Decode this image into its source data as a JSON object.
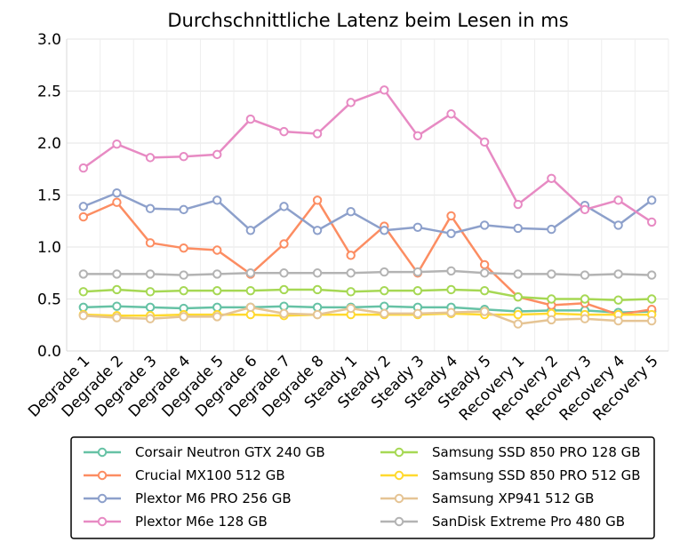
{
  "chart_data": {
    "type": "line",
    "title": "Durchschnittliche Latenz beim Lesen in ms",
    "xlabel": "",
    "ylabel": "",
    "ylim": [
      0.0,
      3.0
    ],
    "yticks": [
      "0.0",
      "0.5",
      "1.0",
      "1.5",
      "2.0",
      "2.5",
      "3.0"
    ],
    "grid": true,
    "legend_position": "bottom",
    "categories": [
      "Degrade 1",
      "Degrade 2",
      "Degrade 3",
      "Degrade 4",
      "Degrade 5",
      "Degrade 6",
      "Degrade 7",
      "Degrade 8",
      "Steady 1",
      "Steady 2",
      "Steady 3",
      "Steady 4",
      "Steady 5",
      "Recovery 1",
      "Recovery 2",
      "Recovery 3",
      "Recovery 4",
      "Recovery 5"
    ],
    "series": [
      {
        "name": "Corsair Neutron GTX 240 GB",
        "color": "#66c2a5",
        "values": [
          0.42,
          0.43,
          0.42,
          0.41,
          0.42,
          0.42,
          0.43,
          0.42,
          0.42,
          0.43,
          0.42,
          0.42,
          0.4,
          0.38,
          0.39,
          0.39,
          0.37,
          0.38
        ]
      },
      {
        "name": "Crucial MX100 512 GB",
        "color": "#fc8d62",
        "values": [
          1.29,
          1.43,
          1.04,
          0.99,
          0.97,
          0.74,
          1.03,
          1.45,
          0.92,
          1.2,
          0.75,
          1.3,
          0.83,
          0.52,
          0.44,
          0.46,
          0.35,
          0.4
        ]
      },
      {
        "name": "Plextor M6 PRO 256 GB",
        "color": "#8da0cb",
        "values": [
          1.39,
          1.52,
          1.37,
          1.36,
          1.45,
          1.16,
          1.39,
          1.16,
          1.34,
          1.16,
          1.19,
          1.13,
          1.21,
          1.18,
          1.17,
          1.4,
          1.21,
          1.45
        ]
      },
      {
        "name": "Plextor M6e 128 GB",
        "color": "#e78ac3",
        "values": [
          1.76,
          1.99,
          1.86,
          1.87,
          1.89,
          2.23,
          2.11,
          2.09,
          2.39,
          2.51,
          2.07,
          2.28,
          2.01,
          1.41,
          1.66,
          1.36,
          1.45,
          1.24
        ]
      },
      {
        "name": "Samsung SSD 850 PRO 128 GB",
        "color": "#a6d854",
        "values": [
          0.57,
          0.59,
          0.57,
          0.58,
          0.58,
          0.58,
          0.59,
          0.59,
          0.57,
          0.58,
          0.58,
          0.59,
          0.58,
          0.52,
          0.5,
          0.5,
          0.49,
          0.5
        ]
      },
      {
        "name": "Samsung SSD 850 PRO 512 GB",
        "color": "#ffd92f",
        "values": [
          0.35,
          0.34,
          0.34,
          0.35,
          0.35,
          0.35,
          0.34,
          0.35,
          0.35,
          0.35,
          0.35,
          0.36,
          0.35,
          0.35,
          0.36,
          0.35,
          0.35,
          0.35
        ]
      },
      {
        "name": "Samsung XP941 512 GB",
        "color": "#e5c494",
        "values": [
          0.34,
          0.32,
          0.31,
          0.33,
          0.33,
          0.42,
          0.36,
          0.35,
          0.41,
          0.36,
          0.36,
          0.37,
          0.38,
          0.26,
          0.3,
          0.31,
          0.29,
          0.29
        ]
      },
      {
        "name": "SanDisk Extreme Pro 480 GB",
        "color": "#b3b3b3",
        "values": [
          0.74,
          0.74,
          0.74,
          0.73,
          0.74,
          0.75,
          0.75,
          0.75,
          0.75,
          0.76,
          0.76,
          0.77,
          0.75,
          0.74,
          0.74,
          0.73,
          0.74,
          0.73
        ]
      }
    ]
  }
}
